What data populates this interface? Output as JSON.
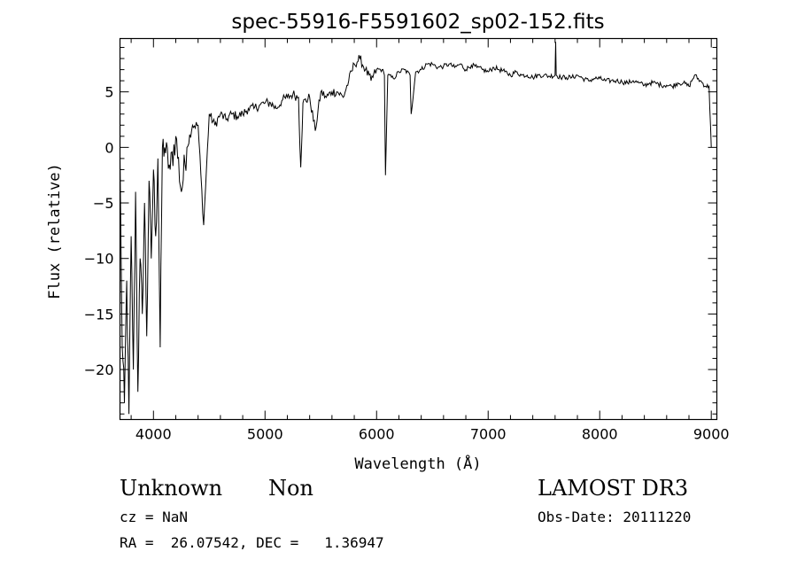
{
  "chart_data": {
    "type": "line",
    "title": "spec-55916-F5591602_sp02-152.fits",
    "xlabel": "Wavelength (Å)",
    "ylabel": "Flux (relative)",
    "xlim": [
      3700,
      9050
    ],
    "ylim": [
      -24.5,
      9.8
    ],
    "xticks": [
      4000,
      5000,
      6000,
      7000,
      8000,
      9000
    ],
    "yticks": [
      -20,
      -15,
      -10,
      -5,
      0,
      5
    ],
    "grid": false,
    "series": [
      {
        "x": [
          3700,
          3720,
          3740,
          3760,
          3780,
          3800,
          3820,
          3840,
          3860,
          3880,
          3900,
          3920,
          3940,
          3960,
          3980,
          4000,
          4020,
          4040,
          4060,
          4080,
          4100,
          4150,
          4200,
          4250,
          4300,
          4350,
          4400,
          4450,
          4500,
          4550,
          4600,
          4650,
          4700,
          4750,
          4800,
          4850,
          4900,
          4950,
          5000,
          5050,
          5100,
          5150,
          5200,
          5250,
          5300,
          5320,
          5340,
          5400,
          5450,
          5500,
          5550,
          5600,
          5650,
          5700,
          5750,
          5800,
          5850,
          5900,
          5950,
          6000,
          6050,
          6070,
          6080,
          6100,
          6150,
          6200,
          6250,
          6300,
          6310,
          6350,
          6400,
          6450,
          6500,
          6550,
          6600,
          6650,
          6700,
          6750,
          6800,
          6850,
          6900,
          6950,
          7000,
          7050,
          7100,
          7150,
          7200,
          7250,
          7300,
          7350,
          7400,
          7450,
          7500,
          7550,
          7600,
          7605,
          7610,
          7650,
          7700,
          7750,
          7800,
          7850,
          7900,
          7950,
          8000,
          8050,
          8100,
          8150,
          8200,
          8250,
          8300,
          8350,
          8400,
          8450,
          8500,
          8550,
          8600,
          8650,
          8700,
          8750,
          8800,
          8850,
          8900,
          8950,
          8980,
          9000
        ],
        "y": [
          -1,
          -18,
          -23,
          -12,
          -24,
          -8,
          -20,
          -4,
          -22,
          -10,
          -15,
          -5,
          -17,
          -3,
          -10,
          -2,
          -8,
          -1,
          -18,
          0,
          0,
          -2,
          1,
          -4,
          0,
          2,
          2,
          -7,
          3,
          2,
          3,
          2.5,
          3,
          2.8,
          3,
          3.5,
          3.5,
          3.8,
          4,
          4,
          3.5,
          4.2,
          4.5,
          4.8,
          4.5,
          -1.8,
          4,
          4.5,
          1.5,
          5,
          4.5,
          5,
          5,
          4.5,
          6,
          7.5,
          8,
          7,
          6,
          7,
          7,
          6.5,
          -2.5,
          6.5,
          6.2,
          6.8,
          7,
          6.5,
          3,
          6.8,
          7,
          7.5,
          7.5,
          7.2,
          7.3,
          7.5,
          7.2,
          7.5,
          7,
          7.4,
          7.2,
          7,
          6.8,
          7.2,
          7,
          6.8,
          6.5,
          6.8,
          6.5,
          6.5,
          6.3,
          6.5,
          6.5,
          6.4,
          6.5,
          9.5,
          6.5,
          6.3,
          6.3,
          6.3,
          6.5,
          6.2,
          6,
          6.2,
          6.2,
          6,
          6,
          6,
          5.9,
          5.8,
          6,
          5.8,
          5.6,
          5.8,
          5.8,
          5.6,
          5.6,
          5.5,
          5.8,
          5.8,
          5.5,
          6.5,
          6,
          5.5,
          5.5,
          0
        ]
      }
    ]
  },
  "info": {
    "obj_class": "Unknown",
    "obj_subclass": "Non",
    "cz": "cz = NaN",
    "radec": "RA =  26.07542, DEC =   1.36947",
    "survey": "LAMOST DR3",
    "obs_date": "Obs-Date: 20111220"
  }
}
